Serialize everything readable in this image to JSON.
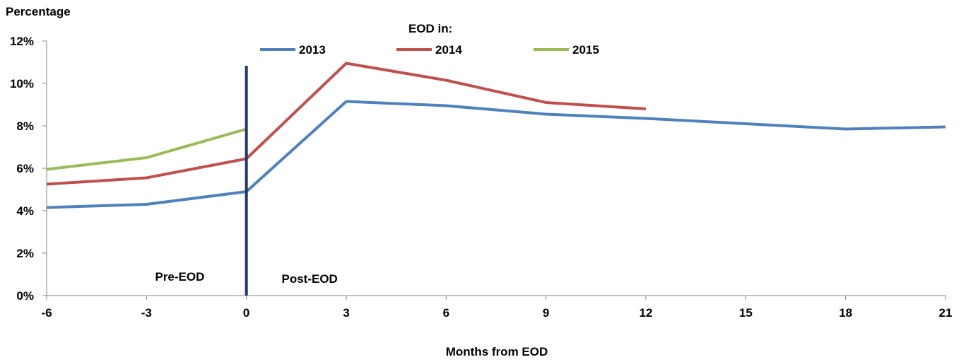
{
  "chart_data": {
    "type": "line",
    "ylabel": "Percentage",
    "xlabel": "Months from EOD",
    "legend_title": "EOD in:",
    "legend_position": "top-center",
    "x_ticks": [
      -6,
      -3,
      0,
      3,
      6,
      9,
      12,
      15,
      18,
      21
    ],
    "x_tick_labels": [
      "-6",
      "-3",
      "0",
      "3",
      "6",
      "9",
      "12",
      "15",
      "18",
      "21"
    ],
    "xlim": [
      -6,
      21
    ],
    "y_ticks": [
      0,
      2,
      4,
      6,
      8,
      10,
      12
    ],
    "y_tick_labels": [
      "0%",
      "2%",
      "4%",
      "6%",
      "8%",
      "10%",
      "12%"
    ],
    "ylim": [
      0,
      12
    ],
    "grid": false,
    "series": [
      {
        "name": "2013",
        "color": "#4f81bd",
        "points": [
          [
            -6,
            4.15
          ],
          [
            -3,
            4.3
          ],
          [
            0,
            4.9
          ],
          [
            3,
            9.15
          ],
          [
            6,
            8.95
          ],
          [
            9,
            8.55
          ],
          [
            12,
            8.35
          ],
          [
            15,
            8.1
          ],
          [
            18,
            7.85
          ],
          [
            21,
            7.95
          ]
        ]
      },
      {
        "name": "2014",
        "color": "#c0504d",
        "points": [
          [
            -6,
            5.25
          ],
          [
            -3,
            5.55
          ],
          [
            0,
            6.45
          ],
          [
            3,
            10.95
          ],
          [
            6,
            10.15
          ],
          [
            9,
            9.1
          ],
          [
            12,
            8.8
          ]
        ]
      },
      {
        "name": "2015",
        "color": "#9bbb59",
        "points": [
          [
            -6,
            5.95
          ],
          [
            -3,
            6.5
          ],
          [
            0,
            7.85
          ]
        ]
      }
    ],
    "divider": {
      "x": 0,
      "color": "#1f3864"
    },
    "annotations": [
      {
        "text": "Pre-EOD",
        "x": -2,
        "y": 0.7
      },
      {
        "text": "Post-EOD",
        "x": 1.9,
        "y": 0.6
      }
    ]
  }
}
